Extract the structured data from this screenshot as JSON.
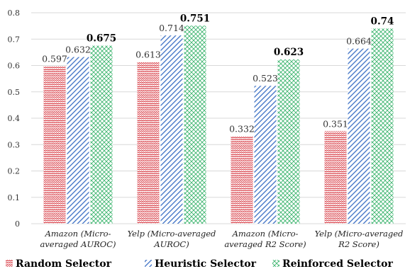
{
  "chart_data": {
    "type": "bar",
    "categories": [
      [
        "Amazon (Micro-",
        "averaged AUROC)"
      ],
      [
        "Yelp (Micro-averaged",
        "AUROC)"
      ],
      [
        "Amazon (Micro-",
        "averaged R2 Score)"
      ],
      [
        "Yelp (Micro-averaged",
        "R2 Score)"
      ]
    ],
    "series": [
      {
        "name": "Random Selector",
        "values": [
          0.597,
          0.613,
          0.332,
          0.351
        ],
        "labels": [
          "0.597",
          "0.613",
          "0.332",
          "0.351"
        ],
        "color": "#d9424b",
        "pattern": "dots"
      },
      {
        "name": "Heuristic Selector",
        "values": [
          0.632,
          0.714,
          0.523,
          0.664
        ],
        "labels": [
          "0.632",
          "0.714",
          "0.523",
          "0.664"
        ],
        "color": "#3b6fc4",
        "pattern": "diagonal"
      },
      {
        "name": "Reinforced Selector",
        "values": [
          0.675,
          0.751,
          0.623,
          0.74
        ],
        "labels": [
          "0.675",
          "0.751",
          "0.623",
          "0.74"
        ],
        "color": "#3cb46e",
        "pattern": "crosshatch"
      }
    ],
    "ylim": [
      0,
      0.8
    ],
    "yticks": [
      "0",
      "0.1",
      "0.2",
      "0.3",
      "0.4",
      "0.5",
      "0.6",
      "0.7",
      "0.8"
    ],
    "grid": true,
    "legend": "bottom",
    "bold_series": "Reinforced Selector"
  }
}
